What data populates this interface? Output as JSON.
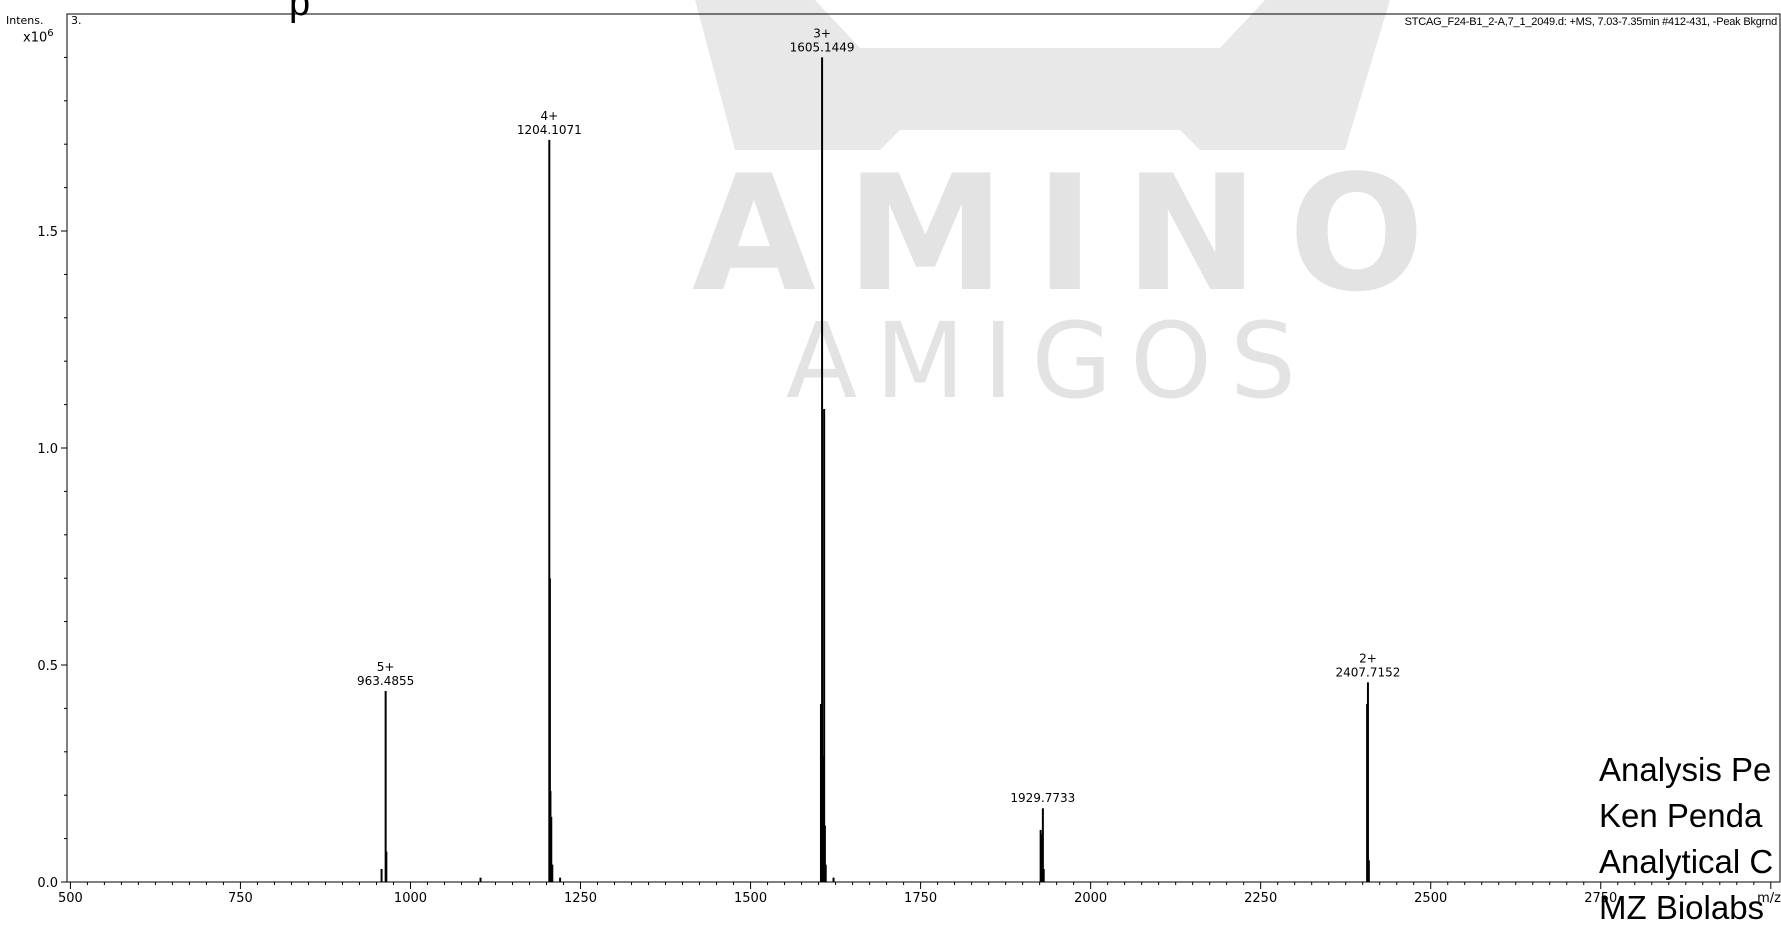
{
  "title_fragment": "p",
  "y_label": "Intens.",
  "y_multiplier_base": "x10",
  "y_multiplier_exp": "6",
  "panel_tag": "3.",
  "spectrum_header": "STCAG_F24-B1_2-A,7_1_2049.d: +MS, 7.03-7.35min #412-431, -Peak Bkgrnd",
  "watermark": {
    "line1": "AMINO",
    "line2": "AMIGOS"
  },
  "analysis_block": {
    "line1": "Analysis Pe",
    "line2": "Ken Penda",
    "line3": "Analytical C",
    "line4": "MZ Biolabs"
  },
  "chart_data": {
    "type": "bar",
    "title": "",
    "xlabel": "m/z",
    "ylabel": "Intens.",
    "xlim": [
      495,
      3015
    ],
    "ylim": [
      0,
      2.0
    ],
    "x_ticks": [
      500,
      750,
      1000,
      1250,
      1500,
      1750,
      2000,
      2250,
      2500,
      2750
    ],
    "x_tick_labels": [
      "500",
      "750",
      "1000",
      "1250",
      "1500",
      "1750",
      "2000",
      "2250",
      "2500",
      "2750"
    ],
    "y_ticks": [
      0.0,
      0.5,
      1.0,
      1.5
    ],
    "y_tick_labels": [
      "0.0",
      "0.5",
      "1.0",
      "1.5"
    ],
    "peaks": [
      {
        "mz": 957.5,
        "intensity": 0.03
      },
      {
        "mz": 963.4855,
        "intensity": 0.44,
        "charge": "5+",
        "label": "963.4855"
      },
      {
        "mz": 964.5,
        "intensity": 0.07
      },
      {
        "mz": 1103.0,
        "intensity": 0.01
      },
      {
        "mz": 1204.1071,
        "intensity": 1.71,
        "charge": "4+",
        "label": "1204.1071"
      },
      {
        "mz": 1205.0,
        "intensity": 0.7
      },
      {
        "mz": 1205.8,
        "intensity": 0.21
      },
      {
        "mz": 1207.0,
        "intensity": 0.15
      },
      {
        "mz": 1208.5,
        "intensity": 0.04
      },
      {
        "mz": 1220.0,
        "intensity": 0.01
      },
      {
        "mz": 1603.5,
        "intensity": 0.41
      },
      {
        "mz": 1605.1449,
        "intensity": 1.9,
        "charge": "3+",
        "label": "1605.1449"
      },
      {
        "mz": 1606.0,
        "intensity": 0.29
      },
      {
        "mz": 1608.2,
        "intensity": 1.09
      },
      {
        "mz": 1609.3,
        "intensity": 0.13
      },
      {
        "mz": 1610.5,
        "intensity": 0.04
      },
      {
        "mz": 1622.0,
        "intensity": 0.01
      },
      {
        "mz": 1926.5,
        "intensity": 0.12
      },
      {
        "mz": 1927.7,
        "intensity": 0.11
      },
      {
        "mz": 1929.7733,
        "intensity": 0.17,
        "label": "1929.7733"
      },
      {
        "mz": 1931.0,
        "intensity": 0.03
      },
      {
        "mz": 2406.5,
        "intensity": 0.41
      },
      {
        "mz": 2407.7152,
        "intensity": 0.46,
        "charge": "2+",
        "label": "2407.7152"
      },
      {
        "mz": 2409.0,
        "intensity": 0.05
      }
    ]
  }
}
